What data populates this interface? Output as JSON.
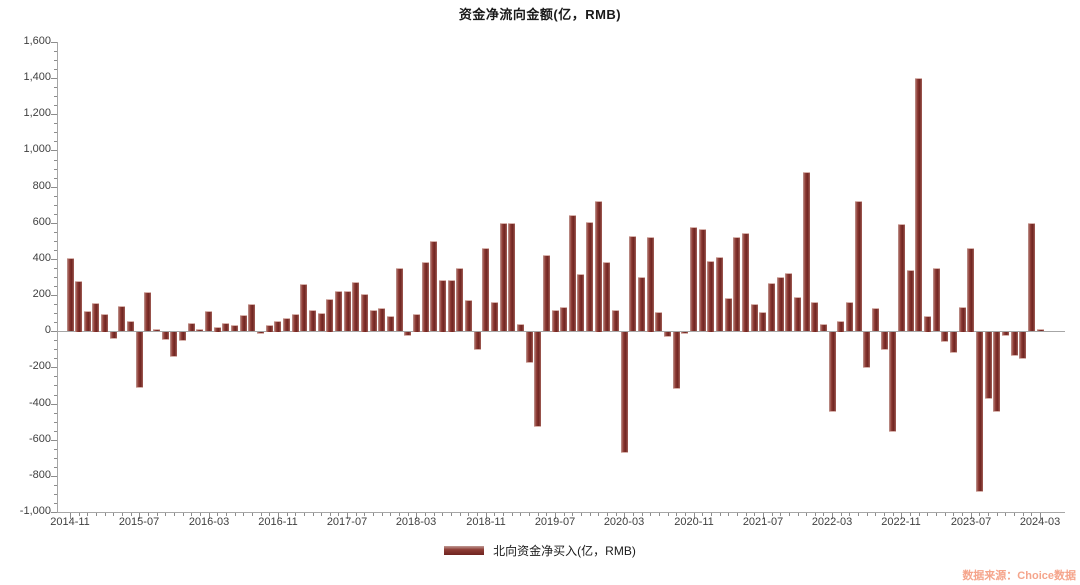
{
  "title": "资金净流向金额(亿，RMB)",
  "legend": {
    "label": "北向资金净买入(亿，RMB)"
  },
  "watermark": "数据来源：Choice数据",
  "colors": {
    "bar": "#7b2d27",
    "bar_highlight": "#c09a94",
    "axis": "#a6a6a6",
    "tick": "#8c8c8c",
    "label": "#404040",
    "watermark": "#f5a58c"
  },
  "chart_data": {
    "type": "bar",
    "title": "资金净流向金额(亿，RMB)",
    "series_name": "北向资金净买入(亿，RMB)",
    "xlabel": "",
    "ylabel": "",
    "ylim": [
      -1000,
      1600
    ],
    "y_tick_step": 200,
    "y_minor_step": 50,
    "x_label_every": 8,
    "grid": false,
    "legend_position": "bottom",
    "categories": [
      "2014-11",
      "2014-12",
      "2015-01",
      "2015-02",
      "2015-03",
      "2015-04",
      "2015-05",
      "2015-06",
      "2015-07",
      "2015-08",
      "2015-09",
      "2015-10",
      "2015-11",
      "2015-12",
      "2016-01",
      "2016-02",
      "2016-03",
      "2016-04",
      "2016-05",
      "2016-06",
      "2016-07",
      "2016-08",
      "2016-09",
      "2016-10",
      "2016-11",
      "2016-12",
      "2017-01",
      "2017-02",
      "2017-03",
      "2017-04",
      "2017-05",
      "2017-06",
      "2017-07",
      "2017-08",
      "2017-09",
      "2017-10",
      "2017-11",
      "2017-12",
      "2018-01",
      "2018-02",
      "2018-03",
      "2018-04",
      "2018-05",
      "2018-06",
      "2018-07",
      "2018-08",
      "2018-09",
      "2018-10",
      "2018-11",
      "2018-12",
      "2019-01",
      "2019-02",
      "2019-03",
      "2019-04",
      "2019-05",
      "2019-06",
      "2019-07",
      "2019-08",
      "2019-09",
      "2019-10",
      "2019-11",
      "2019-12",
      "2020-01",
      "2020-02",
      "2020-03",
      "2020-04",
      "2020-05",
      "2020-06",
      "2020-07",
      "2020-08",
      "2020-09",
      "2020-10",
      "2020-11",
      "2020-12",
      "2021-01",
      "2021-02",
      "2021-03",
      "2021-04",
      "2021-05",
      "2021-06",
      "2021-07",
      "2021-08",
      "2021-09",
      "2021-10",
      "2021-11",
      "2021-12",
      "2022-01",
      "2022-02",
      "2022-03",
      "2022-04",
      "2022-05",
      "2022-06",
      "2022-07",
      "2022-08",
      "2022-09",
      "2022-10",
      "2022-11",
      "2022-12",
      "2023-01",
      "2023-02",
      "2023-03",
      "2023-04",
      "2023-05",
      "2023-06",
      "2023-07",
      "2023-08",
      "2023-09",
      "2023-10",
      "2023-11",
      "2023-12",
      "2024-01",
      "2024-02",
      "2024-03"
    ],
    "values": [
      405,
      280,
      110,
      158,
      98,
      -40,
      140,
      55,
      -310,
      215,
      10,
      -45,
      -140,
      -50,
      45,
      13,
      110,
      25,
      45,
      35,
      88,
      150,
      -13,
      37,
      59,
      72,
      98,
      261,
      116,
      101,
      180,
      221,
      224,
      270,
      208,
      118,
      127,
      85,
      350,
      -20,
      97,
      385,
      500,
      285,
      285,
      350,
      173,
      -98,
      458,
      160,
      598,
      598,
      40,
      -171,
      -525,
      421,
      120,
      132,
      642,
      315,
      602,
      723,
      381,
      116,
      -670,
      526,
      298,
      523,
      105,
      -25,
      -318,
      -10,
      574,
      565,
      390,
      408,
      184,
      519,
      546,
      151,
      105,
      265,
      298,
      320,
      188,
      881,
      164,
      39,
      -443,
      59,
      160,
      718,
      -199,
      127,
      -101,
      -554,
      593,
      340,
      1402,
      86,
      350,
      -57,
      -116,
      136,
      462,
      -885,
      -370,
      -443,
      -24,
      -134,
      -149,
      596,
      13
    ]
  }
}
